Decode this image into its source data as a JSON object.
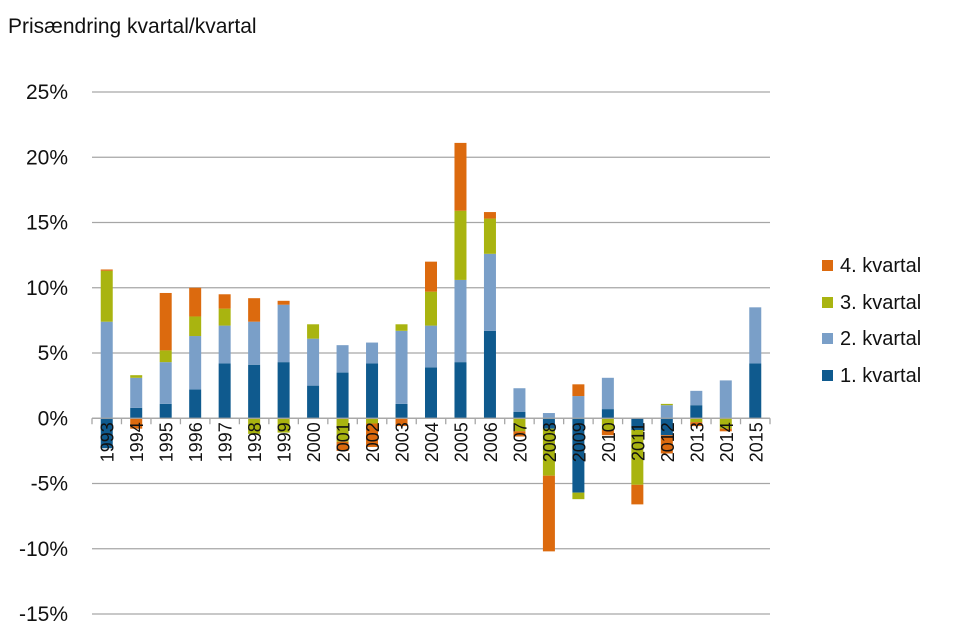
{
  "chart_data": {
    "type": "bar",
    "stacked": true,
    "title": "Prisændring kvartal/kvartal",
    "xlabel": "",
    "ylabel": "",
    "ylim": [
      -15,
      25
    ],
    "yticks": [
      25,
      20,
      15,
      10,
      5,
      0,
      -5,
      -10,
      -15
    ],
    "ytick_labels": [
      "25%",
      "20%",
      "15%",
      "10%",
      "5%",
      "0%",
      "-5%",
      "-10%",
      "-15%"
    ],
    "grid": true,
    "legend_position": "right",
    "categories": [
      "1993",
      "1994",
      "1995",
      "1996",
      "1997",
      "1998",
      "1999",
      "2000",
      "2001",
      "2002",
      "2003",
      "2004",
      "2005",
      "2006",
      "2007",
      "2008",
      "2009",
      "2010",
      "2011",
      "2012",
      "2013",
      "2014",
      "2015"
    ],
    "series": [
      {
        "name": "1. kvartal",
        "color": "#0f5a8e",
        "values": [
          -2.3,
          0.8,
          1.1,
          2.2,
          4.2,
          4.1,
          4.3,
          2.5,
          3.5,
          4.2,
          1.1,
          3.9,
          4.3,
          6.7,
          0.5,
          -0.8,
          -5.7,
          0.7,
          -0.9,
          -1.3,
          1.0,
          0.0,
          4.2
        ]
      },
      {
        "name": "2. kvartal",
        "color": "#7a9fc8",
        "values": [
          7.4,
          2.3,
          3.2,
          4.1,
          2.9,
          3.3,
          4.4,
          3.6,
          2.1,
          1.6,
          5.6,
          3.2,
          6.3,
          5.9,
          1.8,
          0.4,
          1.7,
          2.4,
          0.0,
          1.0,
          1.1,
          2.9,
          4.3
        ]
      },
      {
        "name": "3. kvartal",
        "color": "#a9b410",
        "values": [
          3.9,
          0.2,
          0.9,
          1.5,
          1.3,
          -1.2,
          -1.1,
          1.1,
          -1.8,
          -0.4,
          0.5,
          2.6,
          5.3,
          2.7,
          -1.0,
          -3.6,
          -0.5,
          -0.9,
          -4.2,
          0.1,
          -0.3,
          -0.8,
          0.0
        ]
      },
      {
        "name": "4. kvartal",
        "color": "#dc6a0e",
        "values": [
          0.1,
          -0.8,
          4.4,
          2.2,
          1.1,
          1.8,
          0.3,
          0.0,
          -0.7,
          -1.8,
          -0.6,
          2.3,
          5.2,
          0.5,
          -0.4,
          -5.8,
          0.9,
          -0.4,
          -1.5,
          -1.4,
          -0.3,
          -0.2,
          0.0
        ]
      }
    ],
    "legend_order": [
      "4. kvartal",
      "3. kvartal",
      "2. kvartal",
      "1. kvartal"
    ]
  },
  "colors": {
    "grid": "#a6a6a6",
    "axis": "#a6a6a6",
    "text": "#111111"
  }
}
